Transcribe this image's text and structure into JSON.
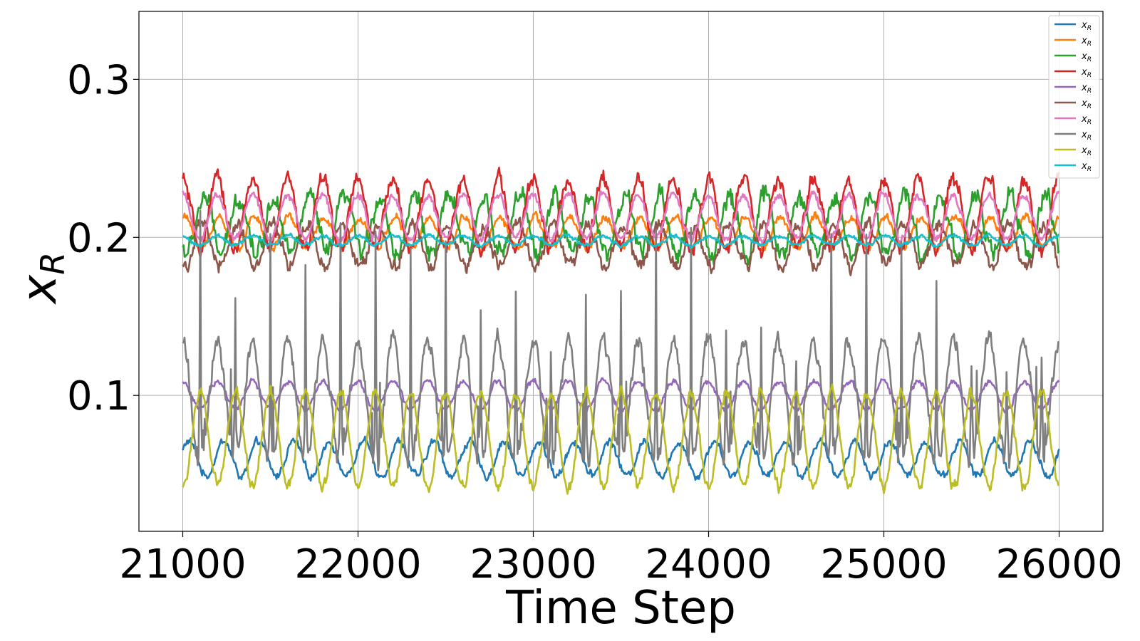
{
  "chart_data": {
    "type": "line",
    "title": "",
    "xlabel": "Time Step",
    "ylabel": "x_R",
    "ylabel_main": "x",
    "ylabel_sub": "R",
    "xlim": [
      20750,
      26250
    ],
    "ylim": [
      0.014,
      0.343
    ],
    "xticks": [
      21000,
      22000,
      23000,
      24000,
      25000,
      26000
    ],
    "xtick_labels": [
      "21000",
      "22000",
      "23000",
      "24000",
      "25000",
      "26000"
    ],
    "yticks": [
      0.1,
      0.2,
      0.3
    ],
    "ytick_labels": [
      "0.1",
      "0.2",
      "0.3"
    ],
    "grid": true,
    "legend_position": "top-right",
    "x_start": 21000,
    "x_end": 26000,
    "series": [
      {
        "name": "x_R",
        "color": "#1f77b4",
        "mean": 0.06,
        "amp": 0.011,
        "period": 200,
        "phase": 0.5,
        "noise": 0.004,
        "spike_amp": 0,
        "spike_every": 0,
        "spike_offset": 0
      },
      {
        "name": "x_R",
        "color": "#ff7f0e",
        "mean": 0.203,
        "amp": 0.01,
        "period": 200,
        "phase": 1.3,
        "noise": 0.004,
        "spike_amp": 0,
        "spike_every": 0,
        "spike_offset": 0
      },
      {
        "name": "x_R",
        "color": "#2ca02c",
        "mean": 0.208,
        "amp": 0.018,
        "period": 200,
        "phase": 4.0,
        "noise": 0.01,
        "spike_amp": 0,
        "spike_every": 0,
        "spike_offset": 0
      },
      {
        "name": "x_R",
        "color": "#d62728",
        "mean": 0.215,
        "amp": 0.022,
        "period": 200,
        "phase": 1.6,
        "noise": 0.008,
        "spike_amp": 0,
        "spike_every": 0,
        "spike_offset": 0
      },
      {
        "name": "x_R",
        "color": "#9467bd",
        "mean": 0.1,
        "amp": 0.009,
        "period": 200,
        "phase": 1.6,
        "noise": 0.003,
        "spike_amp": 0,
        "spike_every": 0,
        "spike_offset": 0
      },
      {
        "name": "x_R",
        "color": "#8c564b",
        "mean": 0.195,
        "amp": 0.013,
        "period": 200,
        "phase": 4.3,
        "noise": 0.007,
        "spike_amp": 0,
        "spike_every": 0,
        "spike_offset": 0
      },
      {
        "name": "x_R",
        "color": "#e377c2",
        "mean": 0.213,
        "amp": 0.014,
        "period": 200,
        "phase": 1.6,
        "noise": 0.004,
        "spike_amp": 0,
        "spike_every": 0,
        "spike_offset": 0
      },
      {
        "name": "x_R",
        "color": "#7f7f7f",
        "mean": 0.095,
        "amp": 0.04,
        "period": 200,
        "phase": 1.6,
        "noise": 0.01,
        "spike_amp": 0.16,
        "spike_every": 200,
        "spike_offset": 100
      },
      {
        "name": "x_R",
        "color": "#bcbd22",
        "mean": 0.072,
        "amp": 0.03,
        "period": 200,
        "phase": 4.7,
        "noise": 0.006,
        "spike_amp": 0,
        "spike_every": 0,
        "spike_offset": 0
      },
      {
        "name": "x_R",
        "color": "#17becf",
        "mean": 0.198,
        "amp": 0.003,
        "period": 200,
        "phase": 1.6,
        "noise": 0.002,
        "spike_amp": 0,
        "spike_every": 0,
        "spike_offset": 0
      }
    ]
  }
}
